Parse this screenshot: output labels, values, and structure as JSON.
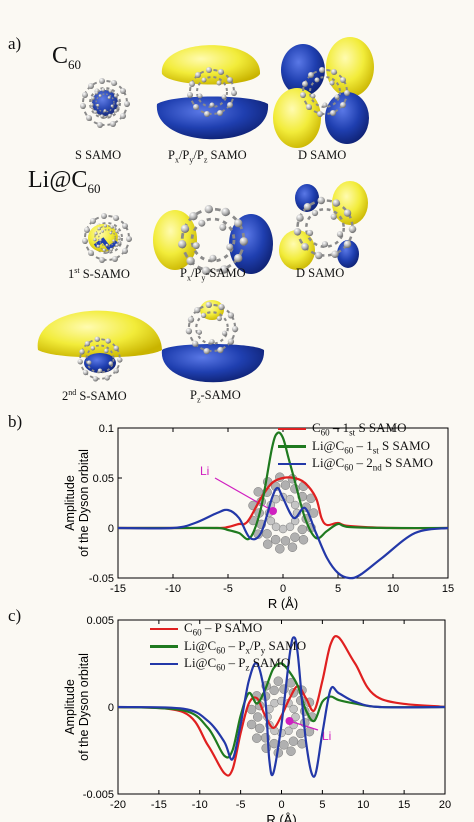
{
  "panel_a": {
    "letter": "a)",
    "c60_label": "C",
    "c60_sub": "60",
    "li_label": "Li@C",
    "li_sub": "60",
    "captions": {
      "s_samo": "S SAMO",
      "p_samo_a": "P",
      "p_samo_b": "x",
      "p_samo_c": "/P",
      "p_samo_d": "y",
      "p_samo_e": "/P",
      "p_samo_f": "z",
      "p_samo_g": " SAMO",
      "d_samo_1": "D SAMO",
      "first_s_a": "1",
      "first_s_sup": "st",
      "first_s_b": " S-SAMO",
      "pxpy_a": "P",
      "pxpy_b": "x",
      "pxpy_c": "/P",
      "pxpy_d": "y",
      "pxpy_e": "-SAMO",
      "d_samo_2": "D  SAMO",
      "second_s_a": "2",
      "second_s_sup": "nd",
      "second_s_b": " S-SAMO",
      "pz_a": "P",
      "pz_b": "z",
      "pz_c": "-SAMO"
    }
  },
  "panel_b": {
    "letter": "b)",
    "li_annotation": "Li"
  },
  "panel_c": {
    "letter": "c)",
    "li_annotation": "Li"
  },
  "colors": {
    "red": "#e02020",
    "green": "#1f7a1f",
    "blue": "#2338a8",
    "yellow": "#f2ec3a",
    "orbital_blue": "#1f3fb0",
    "magenta": "#d020c0"
  },
  "chart_data": [
    {
      "type": "line",
      "xlabel": "R (Å)",
      "ylabel": "Amplitude of the Dyson orbital",
      "xlim": [
        -15,
        15
      ],
      "ylim": [
        -0.05,
        0.1
      ],
      "x_ticks": [
        "-15",
        "-10",
        "-5",
        "0",
        "5",
        "10",
        "15"
      ],
      "y_ticks": [
        "-0.05",
        "0",
        "0.05",
        "0.1"
      ],
      "legend_placement": "top-right",
      "series": [
        {
          "name": "C60 – 1st S SAMO",
          "legend_main": "C",
          "legend_sub": "60",
          "legend_rest": " – 1",
          "legend_sup": "st",
          "legend_end": " S  SAMO",
          "color": "#e02020",
          "x": [
            -15,
            -10,
            -6,
            -5,
            -4,
            -3.5,
            -3,
            -2,
            -1,
            0,
            1,
            2,
            3,
            3.5,
            4,
            5,
            6,
            10,
            15
          ],
          "y": [
            0,
            0,
            0,
            0.001,
            0.004,
            0.004,
            0.01,
            0.03,
            0.045,
            0.05,
            0.05,
            0.045,
            0.03,
            0.01,
            0.003,
            0.005,
            0.002,
            0,
            0
          ]
        },
        {
          "name": "Li@C60 – 1st S SAMO",
          "legend_main": "Li@C",
          "legend_sub": "60",
          "legend_rest": " – 1",
          "legend_sup": "st",
          "legend_end": " S SAMO",
          "color": "#1f7a1f",
          "x": [
            -15,
            -10,
            -6,
            -5,
            -4,
            -3,
            -2,
            -1,
            -0.5,
            0,
            0.5,
            1,
            2,
            3,
            4,
            5,
            6,
            10,
            15
          ],
          "y": [
            0,
            0,
            0,
            -0.002,
            -0.005,
            -0.01,
            0.02,
            0.08,
            0.095,
            0.09,
            0.07,
            0.05,
            0.01,
            -0.01,
            -0.003,
            0.004,
            0.001,
            0,
            0
          ]
        },
        {
          "name": "Li@C60 – 2nd S SAMO",
          "legend_main": "Li@C",
          "legend_sub": "60",
          "legend_rest": " – 2",
          "legend_sup": "nd",
          "legend_end": " S SAMO",
          "color": "#2338a8",
          "x": [
            -15,
            -10,
            -8,
            -6,
            -5,
            -4,
            -3,
            -2,
            -1,
            -0.5,
            0,
            1,
            2,
            3,
            4,
            5,
            6,
            7,
            9,
            12,
            15
          ],
          "y": [
            0,
            0,
            0.005,
            0.015,
            0.018,
            0.01,
            -0.01,
            -0.005,
            0.03,
            0.04,
            0.03,
            0.01,
            0.02,
            -0.005,
            -0.03,
            -0.045,
            -0.05,
            -0.047,
            -0.03,
            -0.005,
            0
          ]
        }
      ]
    },
    {
      "type": "line",
      "xlabel": "R (Å)",
      "ylabel": "Amplitude of the Dyson orbital",
      "xlim": [
        -20,
        20
      ],
      "ylim": [
        -0.005,
        0.005
      ],
      "x_ticks": [
        "-20",
        "-15",
        "-10",
        "-5",
        "0",
        "5",
        "10",
        "15",
        "20"
      ],
      "y_ticks": [
        "-0.005",
        "0",
        "0.005"
      ],
      "legend_placement": "top-left",
      "series": [
        {
          "name": "C60 – P SAMO",
          "legend_main": "C",
          "legend_sub": "60",
          "legend_rest": " – P SAMO",
          "legend_sup": "",
          "legend_end": "",
          "color": "#e02020",
          "x": [
            -20,
            -12,
            -9,
            -7,
            -6,
            -5,
            -4,
            -3,
            -2,
            -1,
            0,
            1,
            2,
            3,
            4,
            5,
            6,
            7,
            9,
            12,
            20
          ],
          "y": [
            0,
            -0.0003,
            -0.0022,
            -0.0038,
            -0.0036,
            -0.0015,
            0.0002,
            0.0005,
            -0.0005,
            -0.0012,
            -0.0005,
            0.0005,
            0.0012,
            0.0005,
            -0.0002,
            0.0015,
            0.0036,
            0.004,
            0.0025,
            0.0005,
            0
          ]
        },
        {
          "name": "Li@C60 – Px/Py SAMO",
          "legend_main": "Li@C",
          "legend_sub": "60",
          "legend_rest": " – P",
          "legend_sup": "x",
          "legend_end": "/P",
          "legend_end_sub": "y",
          "legend_tail": " SAMO",
          "color": "#1f7a1f",
          "x": [
            -20,
            -12,
            -9,
            -7,
            -6,
            -5,
            -4,
            -3,
            -2,
            -1,
            0,
            1,
            2,
            3,
            4,
            5,
            6,
            7,
            9,
            12,
            20
          ],
          "y": [
            0,
            -0.0002,
            -0.0012,
            -0.0028,
            -0.0025,
            -0.0005,
            0.0008,
            0.0002,
            0.001,
            0.0022,
            0.0025,
            0.002,
            0.0012,
            -0.0002,
            -0.0008,
            0.0003,
            0.0006,
            0.0004,
            0.0002,
            0,
            0
          ]
        },
        {
          "name": "Li@C60 – Pz SAMO",
          "legend_main": "Li@C",
          "legend_sub": "60",
          "legend_rest": " – P",
          "legend_sup": "",
          "legend_end": "",
          "legend_end_sub": "z",
          "legend_tail": " SAMO",
          "color": "#2338a8",
          "x": [
            -20,
            -12,
            -9,
            -7,
            -6,
            -5,
            -4,
            -3,
            -2,
            -1.5,
            -1,
            0,
            1,
            1.5,
            2,
            3,
            4,
            5,
            6,
            7,
            9,
            12,
            20
          ],
          "y": [
            0,
            -0.0001,
            -0.0008,
            -0.002,
            -0.003,
            -0.001,
            0.0015,
            0.0025,
            0.0005,
            -0.003,
            -0.0038,
            -0.001,
            0.003,
            0.004,
            0.003,
            -0.002,
            -0.004,
            -0.0015,
            0.001,
            0.0008,
            0.0003,
            0,
            0
          ]
        }
      ]
    }
  ]
}
